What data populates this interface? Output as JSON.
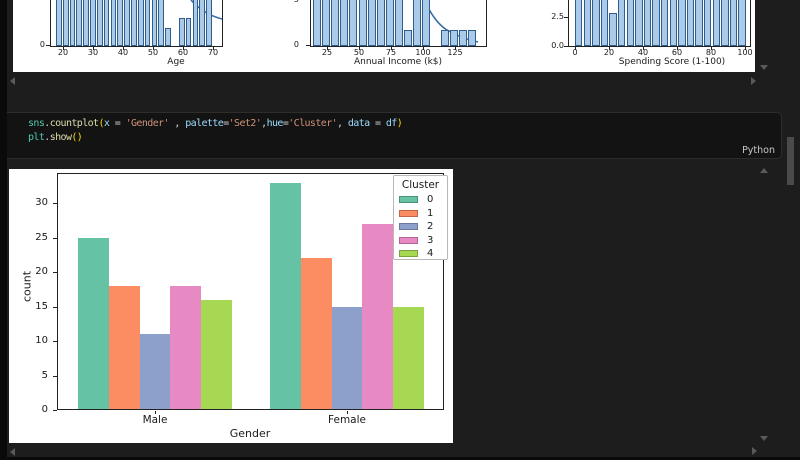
{
  "theme": {
    "page_bg": "#1d1d1d",
    "cell_bg": "#131313",
    "cell_border": "#2d2d2d",
    "figure_bg": "#ffffff",
    "arrow_color": "#5a5a5a",
    "scrollbar_thumb": "#4a4a4a",
    "chart_text": "#1a1a1a"
  },
  "cell": {
    "language_label": "Python",
    "token_colors": {
      "module": "#4EC9B0",
      "func": "#DCDCAA",
      "bracket": "#ffd70a",
      "var": "#9CDCFE",
      "plain": "#d4d4d4",
      "str": "#CE9178"
    },
    "code_lines": [
      [
        {
          "t": "sns",
          "c": "module"
        },
        {
          "t": ".",
          "c": "plain"
        },
        {
          "t": "countplot",
          "c": "func"
        },
        {
          "t": "(",
          "c": "bracket"
        },
        {
          "t": "x",
          "c": "var"
        },
        {
          "t": " = ",
          "c": "plain"
        },
        {
          "t": "'Gender'",
          "c": "str"
        },
        {
          "t": " , ",
          "c": "plain"
        },
        {
          "t": "palette",
          "c": "var"
        },
        {
          "t": "=",
          "c": "plain"
        },
        {
          "t": "'Set2'",
          "c": "str"
        },
        {
          "t": ",",
          "c": "plain"
        },
        {
          "t": "hue",
          "c": "var"
        },
        {
          "t": "=",
          "c": "plain"
        },
        {
          "t": "'Cluster'",
          "c": "str"
        },
        {
          "t": ", ",
          "c": "plain"
        },
        {
          "t": "data",
          "c": "var"
        },
        {
          "t": " = ",
          "c": "plain"
        },
        {
          "t": "df",
          "c": "var"
        },
        {
          "t": ")",
          "c": "bracket"
        }
      ],
      [
        {
          "t": "plt",
          "c": "module"
        },
        {
          "t": ".",
          "c": "plain"
        },
        {
          "t": "show",
          "c": "func"
        },
        {
          "t": "()",
          "c": "bracket"
        }
      ]
    ]
  },
  "chart_data": [
    {
      "id": "age-histogram",
      "type": "bar",
      "subtype": "histogram-clipped-top",
      "xlabel": "Age",
      "x_ticks": [
        20,
        30,
        40,
        50,
        60,
        70
      ],
      "y_ticks_visible": [
        "0"
      ],
      "bar_color": "#a9cbe9",
      "bar_edge_color": "#305d8a",
      "kde_color": "#3a6ea5",
      "kde_overlay": true,
      "bar_heights_frac_of_visible": [
        1,
        1,
        1,
        1,
        1,
        1,
        1,
        1,
        1,
        1,
        1,
        1,
        1,
        1,
        1,
        1,
        0.39,
        0,
        0.61,
        0.61,
        1,
        1,
        1
      ]
    },
    {
      "id": "income-histogram",
      "type": "bar",
      "subtype": "histogram-clipped-top",
      "xlabel": "Annual Income (k$)",
      "x_ticks": [
        25,
        50,
        75,
        100,
        125
      ],
      "y_ticks_visible": [
        "0"
      ],
      "y_tick_partial_top": "5",
      "bar_color": "#a9cbe9",
      "bar_edge_color": "#305d8a",
      "kde_color": "#3a6ea5",
      "kde_overlay": true,
      "bar_heights_frac_of_visible": [
        1,
        1,
        1,
        1,
        1,
        1,
        1,
        1,
        1,
        1,
        0.35,
        1,
        1,
        0,
        0.34,
        0.34,
        0.34,
        0.34
      ]
    },
    {
      "id": "spending-histogram",
      "type": "bar",
      "subtype": "histogram-clipped-top",
      "xlabel": "Spending Score (1-100)",
      "x_ticks": [
        0,
        20,
        40,
        60,
        80,
        100
      ],
      "y_ticks_visible": [
        "0.0",
        "2.5"
      ],
      "bar_color": "#a9cbe9",
      "bar_edge_color": "#305d8a",
      "bar_heights_frac_of_visible": [
        1,
        1,
        1,
        1,
        0.72,
        1,
        1,
        1,
        1,
        1,
        1,
        1,
        1,
        1,
        1,
        1,
        1,
        1,
        1,
        1
      ]
    },
    {
      "id": "gender-cluster-countplot",
      "type": "bar",
      "categories": [
        "Male",
        "Female"
      ],
      "series": [
        {
          "name": "0",
          "color": "#66c2a5",
          "values": [
            25,
            33
          ]
        },
        {
          "name": "1",
          "color": "#fc8d62",
          "values": [
            18,
            22
          ]
        },
        {
          "name": "2",
          "color": "#8da0cb",
          "values": [
            11,
            15
          ]
        },
        {
          "name": "3",
          "color": "#e78ac3",
          "values": [
            18,
            27
          ]
        },
        {
          "name": "4",
          "color": "#a6d854",
          "values": [
            16,
            15
          ]
        }
      ],
      "xlabel": "Gender",
      "ylabel": "count",
      "y_ticks": [
        0,
        5,
        10,
        15,
        20,
        25,
        30
      ],
      "ylim": [
        0,
        34.5
      ],
      "grid": false,
      "legend": {
        "title": "Cluster",
        "position": "upper right",
        "entries": [
          "0",
          "1",
          "2",
          "3",
          "4"
        ]
      }
    }
  ]
}
